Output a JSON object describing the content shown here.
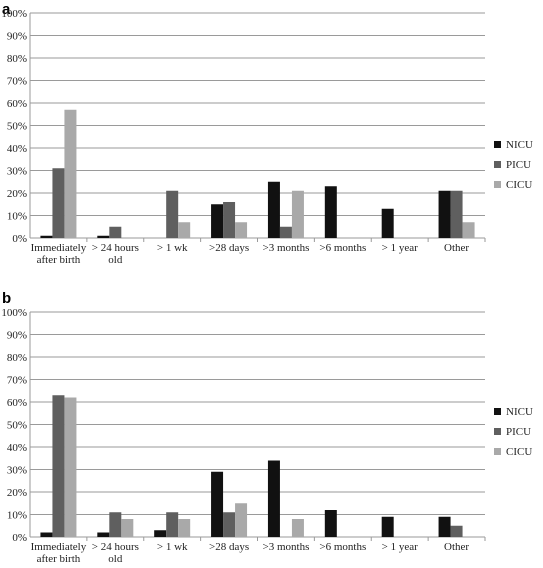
{
  "chart_data": [
    {
      "panel_label": "a",
      "type": "bar",
      "categories": [
        [
          "Immediately",
          "after birth"
        ],
        [
          "> 24 hours",
          "old"
        ],
        [
          "> 1 wk"
        ],
        [
          ">28 days"
        ],
        [
          ">3 months"
        ],
        [
          ">6 months"
        ],
        [
          "> 1 year"
        ],
        [
          "Other"
        ]
      ],
      "series": [
        {
          "name": "NICU",
          "color": "#111111",
          "values": [
            1,
            1,
            0,
            15,
            25,
            23,
            13,
            21
          ]
        },
        {
          "name": "PICU",
          "color": "#5f5f5f",
          "values": [
            31,
            5,
            21,
            16,
            5,
            0,
            0,
            21
          ]
        },
        {
          "name": "CICU",
          "color": "#a9a9a9",
          "values": [
            57,
            0,
            7,
            7,
            21,
            0,
            0,
            7
          ]
        }
      ],
      "ylim": [
        0,
        100
      ],
      "yticks": [
        "0%",
        "10%",
        "20%",
        "30%",
        "40%",
        "50%",
        "60%",
        "70%",
        "80%",
        "90%",
        "100%"
      ],
      "grid": true,
      "legend": "right"
    },
    {
      "panel_label": "b",
      "type": "bar",
      "categories": [
        [
          "Immediately",
          "after birth"
        ],
        [
          "> 24 hours",
          "old"
        ],
        [
          "> 1 wk"
        ],
        [
          ">28 days"
        ],
        [
          ">3 months"
        ],
        [
          ">6 months"
        ],
        [
          "> 1 year"
        ],
        [
          "Other"
        ]
      ],
      "series": [
        {
          "name": "NICU",
          "color": "#111111",
          "values": [
            2,
            2,
            3,
            29,
            34,
            12,
            9,
            9
          ]
        },
        {
          "name": "PICU",
          "color": "#5f5f5f",
          "values": [
            63,
            11,
            11,
            11,
            0,
            0,
            0,
            5
          ]
        },
        {
          "name": "CICU",
          "color": "#a9a9a9",
          "values": [
            62,
            8,
            8,
            15,
            8,
            0,
            0,
            0
          ]
        }
      ],
      "ylim": [
        0,
        100
      ],
      "yticks": [
        "0%",
        "10%",
        "20%",
        "30%",
        "40%",
        "50%",
        "60%",
        "70%",
        "80%",
        "90%",
        "100%"
      ],
      "grid": true,
      "legend": "right"
    }
  ]
}
